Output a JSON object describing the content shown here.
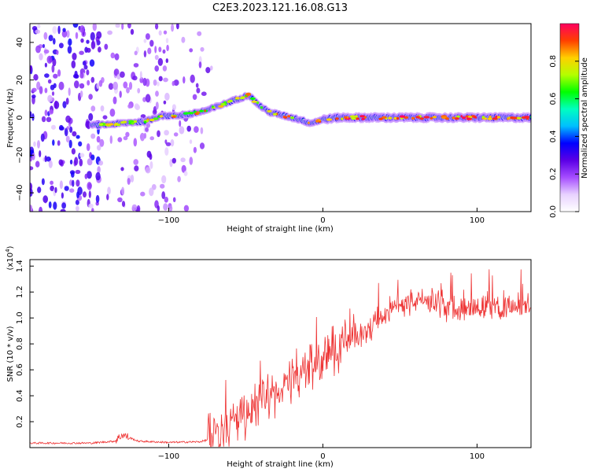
{
  "figure": {
    "title": "C2E3.2023.121.16.08.G13"
  },
  "chart_data": [
    {
      "type": "heatmap",
      "name": "spectrogram",
      "xlabel": "Height of straight line (km)",
      "ylabel": "Frequency (Hz)",
      "xlim": [
        -190,
        135
      ],
      "ylim": [
        -50,
        50
      ],
      "xticks": [
        -100,
        0,
        100
      ],
      "yticks": [
        -40,
        -20,
        0,
        20,
        40
      ],
      "grid": false,
      "colorbar": {
        "label": "Normalized spectral amplitude",
        "range": [
          0,
          1
        ],
        "ticks": [
          0.0,
          0.2,
          0.4,
          0.6,
          0.8
        ],
        "tick_labels": [
          "0.0",
          "0.2",
          "0.4",
          "0.6",
          "0.8"
        ],
        "colormap": [
          "#ffffff",
          "#e8d2ff",
          "#a64dff",
          "#5b00e6",
          "#0000ff",
          "#00bfff",
          "#00ffc0",
          "#00ff00",
          "#b4ff00",
          "#ffd000",
          "#ff4000",
          "#ff0060"
        ]
      },
      "ridge": {
        "x": [
          -145,
          -130,
          -115,
          -105,
          -95,
          -85,
          -75,
          -65,
          -55,
          -48,
          -42,
          -35,
          -25,
          -15,
          -8,
          0,
          10,
          30,
          50,
          70,
          100,
          135
        ],
        "y": [
          -4,
          -3,
          -2,
          1,
          1,
          2,
          4,
          7,
          10,
          12,
          7,
          3,
          1,
          -1,
          -3,
          -1,
          0,
          0,
          0,
          0,
          0,
          0
        ]
      }
    },
    {
      "type": "line",
      "name": "snr",
      "xlabel": "Height of straight line (km)",
      "ylabel": "SNR (10 * v/v)",
      "y_multiplier": "(x10",
      "y_multiplier_exp": "4",
      "y_multiplier_close": ")",
      "xlim": [
        -190,
        135
      ],
      "ylim": [
        0,
        14500
      ],
      "xticks": [
        -100,
        0,
        100
      ],
      "yticks": [
        2000,
        4000,
        6000,
        8000,
        10000,
        12000,
        14000
      ],
      "ytick_labels": [
        "0.2",
        "0.4",
        "0.6",
        "0.8",
        "1.0",
        "1.2",
        "1.4"
      ],
      "grid": false,
      "color": "#ee3333",
      "trend": {
        "x": [
          -190,
          -150,
          -135,
          -130,
          -120,
          -100,
          -80,
          -70,
          -60,
          -50,
          -40,
          -30,
          -20,
          -10,
          0,
          10,
          20,
          30,
          40,
          50,
          60,
          70,
          80,
          90,
          100,
          110,
          120,
          135
        ],
        "y": [
          350,
          350,
          500,
          1000,
          500,
          400,
          450,
          700,
          1800,
          2700,
          3500,
          4300,
          5000,
          6000,
          6800,
          7800,
          8500,
          9300,
          10300,
          11000,
          11400,
          11200,
          11000,
          11000,
          11000,
          10800,
          10900,
          10700
        ]
      }
    }
  ]
}
